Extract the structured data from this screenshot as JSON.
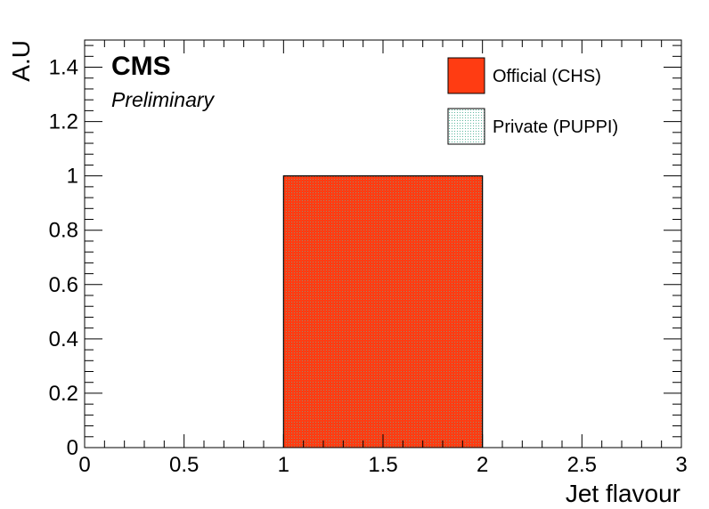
{
  "chart_data": {
    "type": "bar",
    "histogram": true,
    "bins": [
      {
        "low": 0,
        "high": 1,
        "value": 0
      },
      {
        "low": 1,
        "high": 2,
        "value": 1
      },
      {
        "low": 2,
        "high": 3,
        "value": 0
      }
    ],
    "series": [
      {
        "name": "Official (CHS)",
        "values": [
          0,
          1,
          0
        ],
        "color": "#ff3c12",
        "fill": "solid"
      },
      {
        "name": "Private (PUPPI)",
        "values": [
          0,
          1,
          0
        ],
        "color": "#5fb8a0",
        "fill": "dotted-hatch"
      }
    ],
    "xlabel": "Jet flavour",
    "ylabel": "A.U",
    "xlim": [
      0,
      3
    ],
    "ylim": [
      0,
      1.5
    ],
    "xticks": [
      "0",
      "0.5",
      "1",
      "1.5",
      "2",
      "2.5",
      "3"
    ],
    "xtick_values": [
      0,
      0.5,
      1,
      1.5,
      2,
      2.5,
      3
    ],
    "yticks": [
      "0",
      "0.2",
      "0.4",
      "0.6",
      "0.8",
      "1",
      "1.2",
      "1.4"
    ],
    "ytick_values": [
      0,
      0.2,
      0.4,
      0.6,
      0.8,
      1,
      1.2,
      1.4
    ],
    "grid": false,
    "legend_position": "top-right",
    "annotations": {
      "experiment": "CMS",
      "status": "Preliminary"
    }
  }
}
